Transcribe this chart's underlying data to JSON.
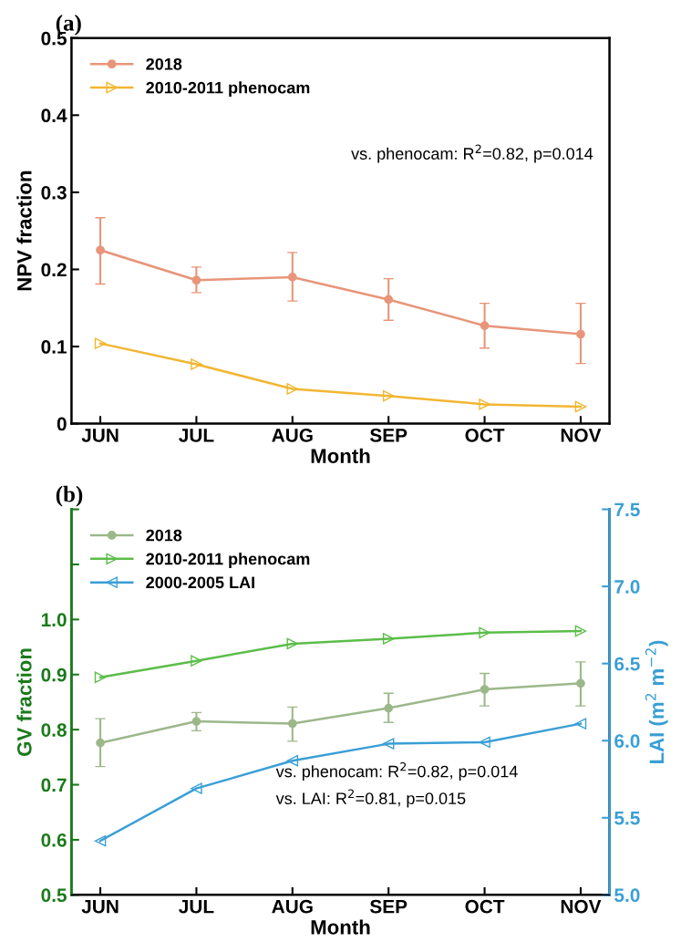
{
  "chart_data": [
    {
      "type": "line",
      "title": "(a)",
      "xlabel": "Month",
      "ylabel": "NPV fraction",
      "categories": [
        "JUN",
        "JUL",
        "AUG",
        "SEP",
        "OCT",
        "NOV"
      ],
      "ylim": [
        0,
        0.5
      ],
      "yticks": [
        0,
        0.1,
        0.2,
        0.3,
        0.4,
        0.5
      ],
      "legend": "top left",
      "grid": false,
      "annotations": [
        "vs. phenocam: R$^{2}$=0.82, p=0.014"
      ],
      "series": [
        {
          "name": "2018",
          "color": "#e8957a",
          "marker": "circle",
          "values": [
            0.225,
            0.186,
            0.19,
            0.161,
            0.127,
            0.116
          ],
          "errors": [
            [
              0.181,
              0.267
            ],
            [
              0.17,
              0.203
            ],
            [
              0.159,
              0.222
            ],
            [
              0.134,
              0.188
            ],
            [
              0.098,
              0.156
            ],
            [
              0.078,
              0.156
            ]
          ]
        },
        {
          "name": "2010-2011 phenocam",
          "color": "#f2b632",
          "marker": "triangle",
          "values": [
            0.104,
            0.077,
            0.045,
            0.036,
            0.025,
            0.022
          ]
        }
      ]
    },
    {
      "type": "line",
      "title": "(b)",
      "xlabel": "Month",
      "ylabel": "GV fraction",
      "y2label": "LAI (m$^{2}$ m$^{−2}$)",
      "categories": [
        "JUN",
        "JUL",
        "AUG",
        "SEP",
        "OCT",
        "NOV"
      ],
      "ylim": [
        0.5,
        1.2
      ],
      "yticks": [
        0.5,
        0.6,
        0.7,
        0.8,
        0.9,
        {
          "value": 1.0,
          "label": "1.0"
        },
        {
          "value": 1.1,
          "label": null
        },
        {
          "value": 1.2,
          "label": null
        }
      ],
      "y2lim": [
        5.0,
        7.5
      ],
      "y2ticks": [
        {
          "value": 5.0,
          "label": "5.0"
        },
        {
          "value": 5.5,
          "label": "5.5"
        },
        {
          "value": 6.0,
          "label": "6.0"
        },
        {
          "value": 6.5,
          "label": "6.5"
        },
        {
          "value": 7.0,
          "label": "7.0"
        },
        {
          "value": 7.5,
          "label": "7.5"
        }
      ],
      "legend": "top left",
      "grid": false,
      "annotations": [
        "vs. phenocam: R$^{2}$=0.82, p=0.014",
        "vs. LAI: R$^{2}$=0.81, p=0.015"
      ],
      "series": [
        {
          "name": "2018",
          "color": "#9cb88a",
          "marker": "circle",
          "values": [
            0.776,
            0.815,
            0.811,
            0.839,
            0.873,
            0.884
          ],
          "errors": [
            [
              0.733,
              0.82
            ],
            [
              0.798,
              0.831
            ],
            [
              0.779,
              0.841
            ],
            [
              0.813,
              0.866
            ],
            [
              0.843,
              0.902
            ],
            [
              0.843,
              0.923
            ]
          ]
        },
        {
          "name": "2010-2011 phenocam",
          "color": "#5cbd4a",
          "marker": "triangle",
          "values": [
            0.895,
            0.925,
            0.956,
            0.965,
            0.976,
            0.979
          ]
        },
        {
          "name": "2000-2005 LAI",
          "color": "#3a9fd6",
          "marker": "triangle_left",
          "axis": "y2",
          "values": [
            5.35,
            5.69,
            5.87,
            5.98,
            5.99,
            6.11
          ]
        }
      ]
    }
  ]
}
